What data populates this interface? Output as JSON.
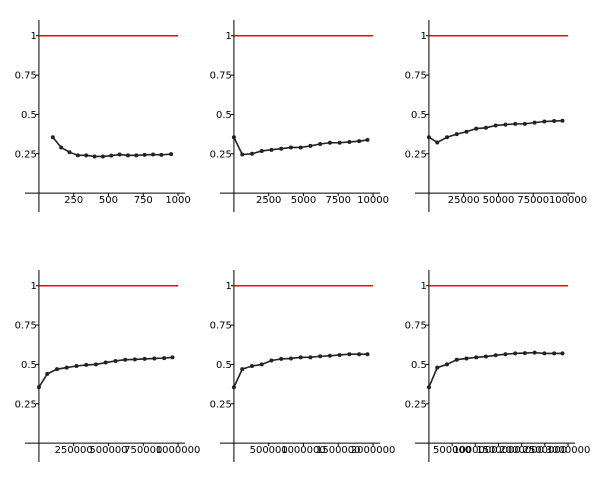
{
  "chart_data": [
    {
      "type": "line",
      "xlim": [
        -100,
        1050
      ],
      "ylim": [
        -0.12,
        1.1
      ],
      "xticks": [
        250,
        500,
        750,
        1000
      ],
      "xtick_labels": [
        "250",
        "500",
        "750",
        "1000"
      ],
      "yticks": [
        0.25,
        0.5,
        0.75,
        1
      ],
      "ytick_labels": [
        "0.25",
        "0.5",
        "0.75",
        "1"
      ],
      "reference_line": {
        "y": 1,
        "x_range": [
          0,
          1000
        ],
        "color": "#ff0000"
      },
      "series": [
        {
          "color": "#222222",
          "x": [
            100,
            160,
            220,
            280,
            340,
            400,
            460,
            520,
            580,
            640,
            700,
            760,
            820,
            880,
            950
          ],
          "y": [
            0.355,
            0.29,
            0.26,
            0.24,
            0.24,
            0.233,
            0.233,
            0.238,
            0.245,
            0.24,
            0.24,
            0.243,
            0.245,
            0.243,
            0.248
          ]
        }
      ]
    },
    {
      "type": "line",
      "xlim": [
        -1000,
        10500
      ],
      "ylim": [
        -0.12,
        1.1
      ],
      "xticks": [
        2500,
        5000,
        7500,
        10000
      ],
      "xtick_labels": [
        "2500",
        "5000",
        "7500",
        "10000"
      ],
      "yticks": [
        0.25,
        0.5,
        0.75,
        1
      ],
      "ytick_labels": [
        "0.25",
        "0.5",
        "0.75",
        "1"
      ],
      "reference_line": {
        "y": 1,
        "x_range": [
          0,
          10000
        ],
        "color": "#ff0000"
      },
      "series": [
        {
          "color": "#222222",
          "x": [
            0,
            600,
            1300,
            2000,
            2700,
            3400,
            4100,
            4800,
            5500,
            6200,
            6900,
            7600,
            8300,
            9000,
            9600
          ],
          "y": [
            0.355,
            0.245,
            0.25,
            0.268,
            0.275,
            0.282,
            0.29,
            0.29,
            0.3,
            0.312,
            0.32,
            0.32,
            0.325,
            0.33,
            0.338
          ]
        }
      ]
    },
    {
      "type": "line",
      "xlim": [
        -10000,
        105000
      ],
      "ylim": [
        -0.12,
        1.1
      ],
      "xticks": [
        25000,
        50000,
        75000,
        100000
      ],
      "xtick_labels": [
        "25000",
        "50000",
        "75000",
        "100000"
      ],
      "yticks": [
        0.25,
        0.5,
        0.75,
        1
      ],
      "ytick_labels": [
        "0.25",
        "0.5",
        "0.75",
        "1"
      ],
      "reference_line": {
        "y": 1,
        "x_range": [
          0,
          100000
        ],
        "color": "#ff0000"
      },
      "series": [
        {
          "color": "#222222",
          "x": [
            0,
            6000,
            13000,
            20000,
            27000,
            34000,
            41000,
            48000,
            55000,
            62000,
            69000,
            76000,
            83000,
            90000,
            96000
          ],
          "y": [
            0.355,
            0.322,
            0.355,
            0.375,
            0.39,
            0.41,
            0.415,
            0.43,
            0.435,
            0.44,
            0.44,
            0.448,
            0.455,
            0.458,
            0.46
          ]
        }
      ]
    },
    {
      "type": "line",
      "xlim": [
        -100000,
        1050000
      ],
      "ylim": [
        -0.12,
        1.1
      ],
      "xticks": [
        250000,
        500000,
        750000,
        1000000
      ],
      "xtick_labels": [
        "250000",
        "500000",
        "750000",
        "1000000"
      ],
      "yticks": [
        0.25,
        0.5,
        0.75,
        1
      ],
      "ytick_labels": [
        "0.25",
        "0.5",
        "0.75",
        "1"
      ],
      "reference_line": {
        "y": 1,
        "x_range": [
          0,
          1000000
        ],
        "color": "#ff0000"
      },
      "series": [
        {
          "color": "#222222",
          "x": [
            0,
            60000,
            130000,
            200000,
            270000,
            340000,
            410000,
            480000,
            550000,
            620000,
            690000,
            760000,
            830000,
            900000,
            960000
          ],
          "y": [
            0.355,
            0.44,
            0.47,
            0.48,
            0.49,
            0.497,
            0.5,
            0.512,
            0.522,
            0.53,
            0.532,
            0.535,
            0.538,
            0.54,
            0.545
          ]
        }
      ]
    },
    {
      "type": "line",
      "xlim": [
        -200000,
        2100000
      ],
      "ylim": [
        -0.12,
        1.1
      ],
      "xticks": [
        500000,
        1000000,
        1500000,
        2000000
      ],
      "xtick_labels": [
        "500000",
        "1000000",
        "1500000",
        "2000000"
      ],
      "yticks": [
        0.25,
        0.5,
        0.75,
        1
      ],
      "ytick_labels": [
        "0.25",
        "0.5",
        "0.75",
        "1"
      ],
      "reference_line": {
        "y": 1,
        "x_range": [
          0,
          2000000
        ],
        "color": "#ff0000"
      },
      "series": [
        {
          "color": "#222222",
          "x": [
            0,
            120000,
            260000,
            400000,
            540000,
            680000,
            820000,
            960000,
            1100000,
            1240000,
            1380000,
            1520000,
            1660000,
            1800000,
            1920000
          ],
          "y": [
            0.355,
            0.47,
            0.49,
            0.5,
            0.525,
            0.535,
            0.538,
            0.545,
            0.545,
            0.552,
            0.555,
            0.56,
            0.565,
            0.565,
            0.565
          ]
        }
      ]
    },
    {
      "type": "line",
      "xlim": [
        -300000,
        3150000
      ],
      "ylim": [
        -0.12,
        1.1
      ],
      "xticks": [
        500000,
        1000000,
        1500000,
        2000000,
        2500000,
        3000000
      ],
      "xtick_labels": [
        "500000",
        "1000000",
        "1500000",
        "2000000",
        "2500000",
        "3000000"
      ],
      "yticks": [
        0.25,
        0.5,
        0.75,
        1
      ],
      "ytick_labels": [
        "0.25",
        "0.5",
        "0.75",
        "1"
      ],
      "reference_line": {
        "y": 1,
        "x_range": [
          0,
          3000000
        ],
        "color": "#ff0000"
      },
      "series": [
        {
          "color": "#222222",
          "x": [
            0,
            180000,
            390000,
            600000,
            810000,
            1020000,
            1230000,
            1440000,
            1650000,
            1860000,
            2070000,
            2280000,
            2490000,
            2700000,
            2880000
          ],
          "y": [
            0.355,
            0.48,
            0.5,
            0.53,
            0.538,
            0.545,
            0.55,
            0.558,
            0.565,
            0.57,
            0.572,
            0.575,
            0.57,
            0.57,
            0.57
          ]
        }
      ]
    }
  ]
}
